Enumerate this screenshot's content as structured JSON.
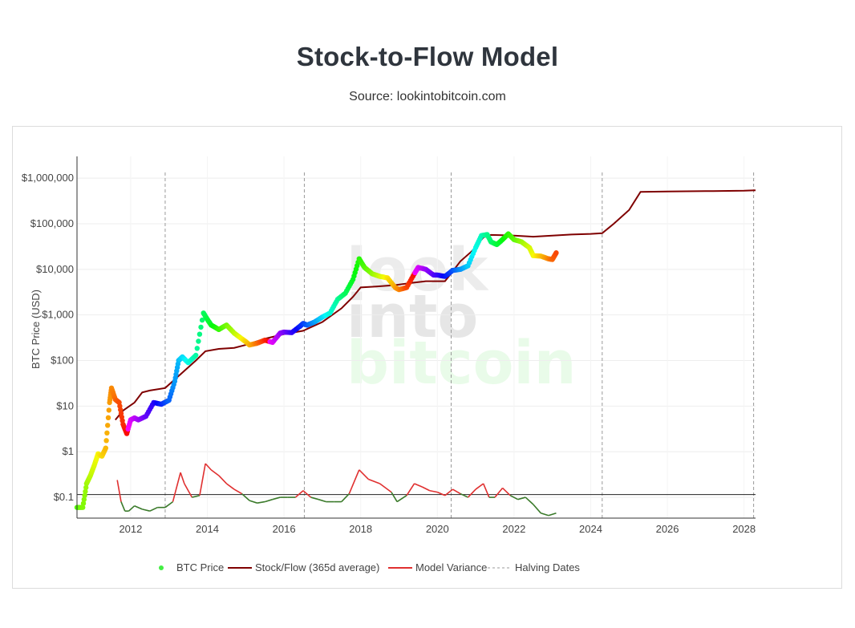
{
  "page": {
    "title": "Stock-to-Flow Model",
    "subtitle": "Source: lookintobitcoin.com",
    "watermark": [
      "look",
      "into",
      "bitcoin"
    ]
  },
  "chart_data": {
    "type": "line",
    "ylabel": "BTC Price (USD)",
    "y_scale": "log",
    "ylim": [
      0.035,
      3000000
    ],
    "xlim": [
      2010.6,
      2028.3
    ],
    "x_ticks": [
      2012,
      2014,
      2016,
      2018,
      2020,
      2022,
      2024,
      2026,
      2028
    ],
    "x_tick_labels": [
      "2012",
      "2014",
      "2016",
      "2018",
      "2020",
      "2022",
      "2024",
      "2026",
      "2028"
    ],
    "y_ticks": [
      0.1,
      1,
      10,
      100,
      1000,
      10000,
      100000,
      1000000
    ],
    "y_tick_labels": [
      "$0.1",
      "$1",
      "$10",
      "$100",
      "$1,000",
      "$10,000",
      "$100,000",
      "$1,000,000"
    ],
    "legend_position": "bottom",
    "grid": true,
    "reference_line": 0.115,
    "halving_dates": [
      2012.9,
      2016.53,
      2020.36,
      2024.3,
      2028.25
    ],
    "series": [
      {
        "name": "BTC Price",
        "style": "colored-points",
        "color": "#44ee44",
        "x": [
          2010.6,
          2010.75,
          2010.85,
          2010.95,
          2011.05,
          2011.15,
          2011.25,
          2011.35,
          2011.45,
          2011.5,
          2011.6,
          2011.7,
          2011.8,
          2011.9,
          2012.0,
          2012.1,
          2012.2,
          2012.4,
          2012.6,
          2012.8,
          2013.0,
          2013.15,
          2013.25,
          2013.35,
          2013.5,
          2013.7,
          2013.9,
          2014.0,
          2014.1,
          2014.3,
          2014.5,
          2014.7,
          2014.9,
          2015.0,
          2015.1,
          2015.3,
          2015.5,
          2015.7,
          2015.9,
          2016.0,
          2016.2,
          2016.4,
          2016.5,
          2016.6,
          2016.8,
          2017.0,
          2017.2,
          2017.4,
          2017.6,
          2017.8,
          2017.96,
          2018.1,
          2018.3,
          2018.5,
          2018.7,
          2018.9,
          2019.0,
          2019.2,
          2019.4,
          2019.5,
          2019.7,
          2019.9,
          2020.0,
          2020.2,
          2020.4,
          2020.6,
          2020.8,
          2021.0,
          2021.15,
          2021.3,
          2021.4,
          2021.55,
          2021.7,
          2021.85,
          2022.0,
          2022.2,
          2022.4,
          2022.5,
          2022.7,
          2022.9,
          2023.0,
          2023.1
        ],
        "values": [
          0.06,
          0.06,
          0.2,
          0.3,
          0.5,
          0.9,
          0.8,
          1.2,
          12,
          25,
          14,
          12,
          4,
          2.5,
          5,
          5.5,
          5,
          6,
          12,
          11,
          13.5,
          35,
          100,
          120,
          90,
          130,
          1100,
          800,
          600,
          480,
          600,
          400,
          300,
          260,
          220,
          240,
          280,
          250,
          400,
          420,
          410,
          550,
          650,
          600,
          700,
          900,
          1100,
          2200,
          3000,
          6000,
          17000,
          11000,
          8000,
          7000,
          6500,
          4000,
          3600,
          4000,
          8000,
          11000,
          10000,
          7500,
          7500,
          7000,
          9500,
          10000,
          12000,
          30000,
          55000,
          58000,
          40000,
          35000,
          45000,
          60000,
          45000,
          40000,
          30000,
          20000,
          19500,
          17000,
          16500,
          23000
        ]
      },
      {
        "name": "Stock/Flow (365d average)",
        "style": "line",
        "color": "#7f0000",
        "x": [
          2011.6,
          2011.8,
          2012.1,
          2012.3,
          2012.5,
          2012.9,
          2013.3,
          2013.7,
          2013.95,
          2014.3,
          2014.7,
          2015.0,
          2015.5,
          2016.0,
          2016.5,
          2017.0,
          2017.5,
          2017.8,
          2018.0,
          2018.4,
          2018.9,
          2019.3,
          2019.7,
          2020.0,
          2020.2,
          2020.4,
          2020.6,
          2020.9,
          2021.2,
          2021.4,
          2021.7,
          2022.0,
          2022.5,
          2023.0,
          2023.5,
          2024.0,
          2024.3,
          2024.6,
          2025.0,
          2025.3,
          2026.0,
          2027.0,
          2028.0,
          2028.3
        ],
        "values": [
          5,
          8,
          12,
          20,
          22,
          25,
          50,
          100,
          160,
          180,
          190,
          220,
          300,
          380,
          450,
          700,
          1400,
          2500,
          4000,
          4200,
          4500,
          5000,
          5500,
          5500,
          5500,
          9000,
          15000,
          25000,
          50000,
          57000,
          56000,
          55000,
          52000,
          55000,
          58000,
          60000,
          62000,
          100000,
          200000,
          500000,
          510000,
          520000,
          530000,
          540000
        ]
      },
      {
        "name": "Model Variance",
        "style": "line",
        "color": "#e03030",
        "x": [
          2011.65,
          2011.75,
          2011.85,
          2011.95,
          2012.1,
          2012.3,
          2012.5,
          2012.7,
          2012.9,
          2013.1,
          2013.3,
          2013.4,
          2013.6,
          2013.8,
          2013.95,
          2014.1,
          2014.3,
          2014.5,
          2014.7,
          2014.9,
          2015.1,
          2015.3,
          2015.5,
          2015.7,
          2015.9,
          2016.1,
          2016.3,
          2016.5,
          2016.7,
          2016.9,
          2017.1,
          2017.3,
          2017.5,
          2017.7,
          2017.96,
          2018.2,
          2018.5,
          2018.8,
          2018.95,
          2019.2,
          2019.4,
          2019.6,
          2019.8,
          2020.0,
          2020.2,
          2020.4,
          2020.6,
          2020.8,
          2021.0,
          2021.2,
          2021.35,
          2021.5,
          2021.7,
          2021.9,
          2022.1,
          2022.3,
          2022.5,
          2022.7,
          2022.9,
          2023.1
        ],
        "values": [
          0.24,
          0.08,
          0.05,
          0.05,
          0.065,
          0.055,
          0.05,
          0.06,
          0.06,
          0.08,
          0.35,
          0.2,
          0.1,
          0.11,
          0.55,
          0.4,
          0.3,
          0.2,
          0.15,
          0.12,
          0.085,
          0.075,
          0.08,
          0.09,
          0.1,
          0.1,
          0.1,
          0.14,
          0.1,
          0.09,
          0.08,
          0.08,
          0.08,
          0.12,
          0.4,
          0.25,
          0.2,
          0.13,
          0.08,
          0.11,
          0.2,
          0.17,
          0.14,
          0.13,
          0.11,
          0.15,
          0.12,
          0.1,
          0.15,
          0.2,
          0.1,
          0.1,
          0.16,
          0.11,
          0.09,
          0.1,
          0.07,
          0.045,
          0.04,
          0.045
        ]
      },
      {
        "name": "Halving Dates",
        "style": "dashed-vertical",
        "color": "#999999"
      }
    ]
  }
}
